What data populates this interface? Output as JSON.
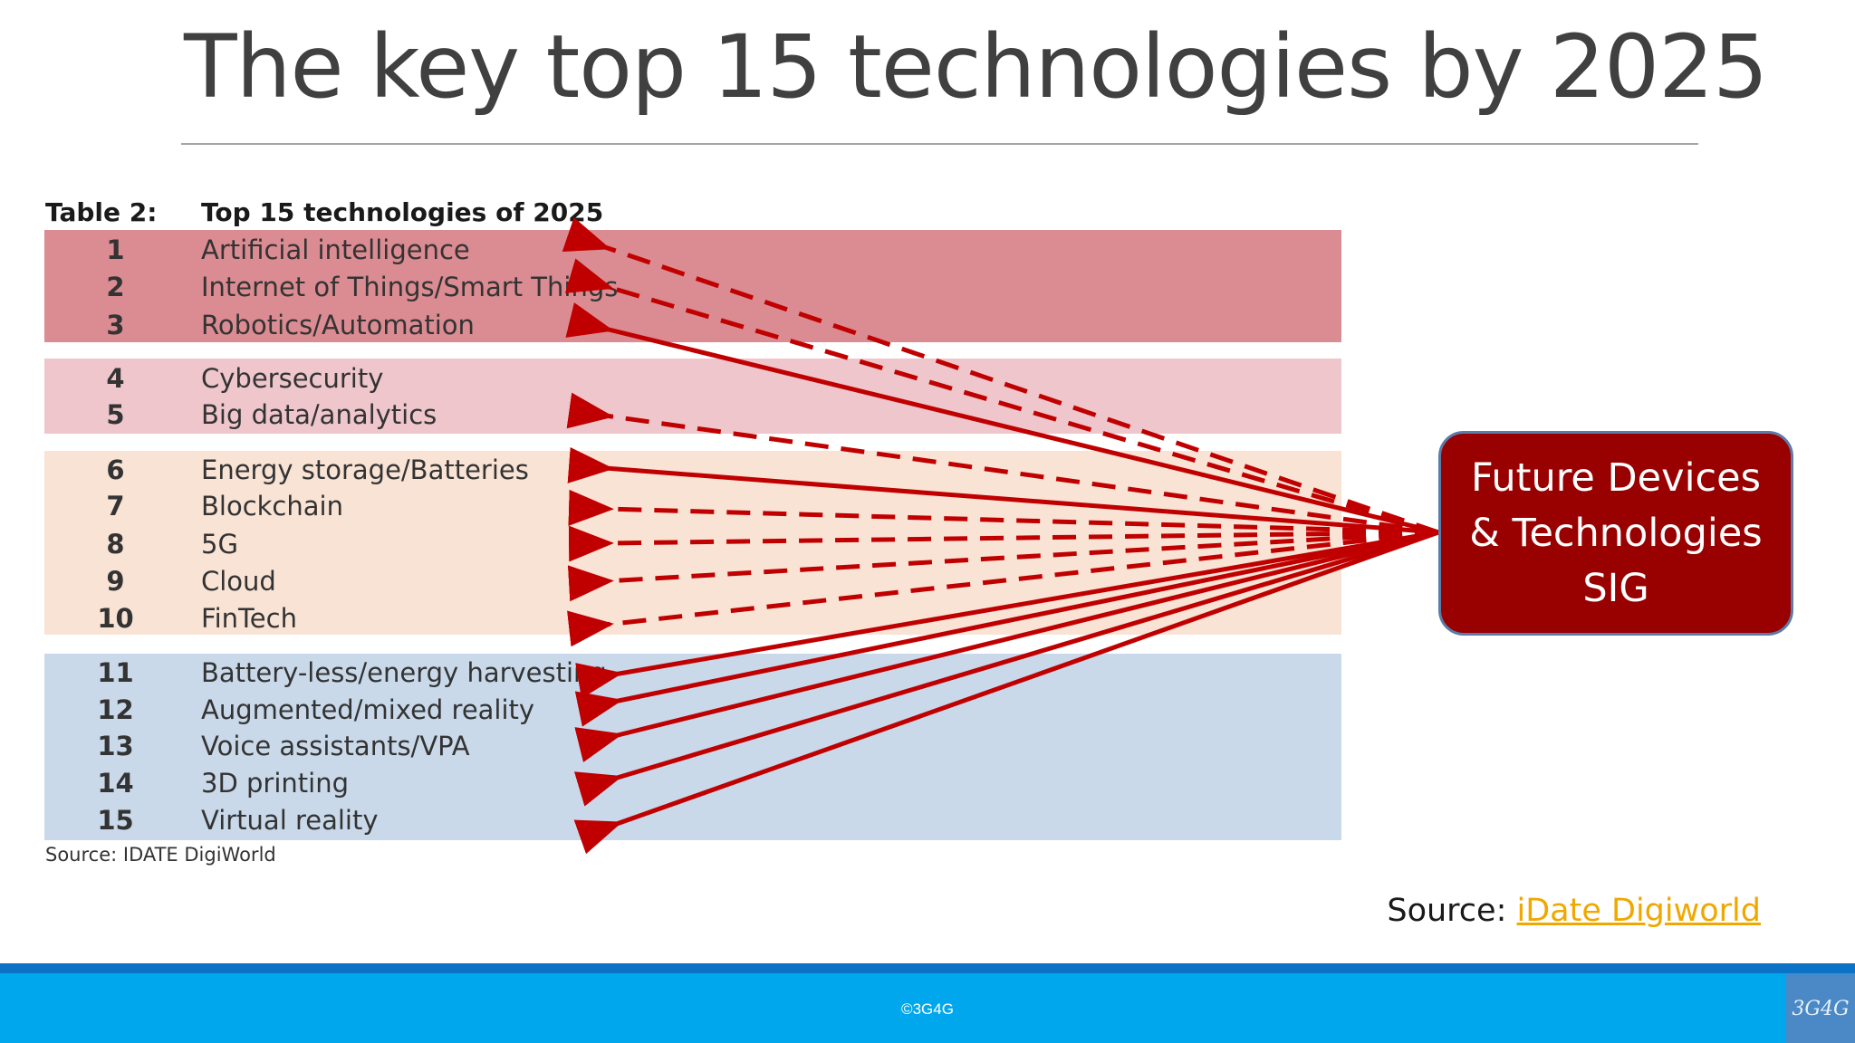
{
  "title": "The key top 15 technologies by 2025",
  "table": {
    "caption": "Table 2:",
    "heading": "Top 15 technologies of 2025",
    "rows": [
      {
        "rank": "1",
        "name": "Artificial intelligence"
      },
      {
        "rank": "2",
        "name": "Internet of Things/Smart Things"
      },
      {
        "rank": "3",
        "name": "Robotics/Automation"
      },
      {
        "rank": "4",
        "name": "Cybersecurity"
      },
      {
        "rank": "5",
        "name": "Big data/analytics"
      },
      {
        "rank": "6",
        "name": "Energy storage/Batteries"
      },
      {
        "rank": "7",
        "name": "Blockchain"
      },
      {
        "rank": "8",
        "name": "5G"
      },
      {
        "rank": "9",
        "name": "Cloud"
      },
      {
        "rank": "10",
        "name": "FinTech"
      },
      {
        "rank": "11",
        "name": "Battery-less/energy harvesting"
      },
      {
        "rank": "12",
        "name": "Augmented/mixed reality"
      },
      {
        "rank": "13",
        "name": "Voice assistants/VPA"
      },
      {
        "rank": "14",
        "name": "3D printing"
      },
      {
        "rank": "15",
        "name": "Virtual reality"
      }
    ],
    "source": "Source: IDATE DigiWorld",
    "band_colors": [
      "#db8b92",
      "#eec6cc",
      "#f8e3d5",
      "#c9d9ea"
    ]
  },
  "sig_box": {
    "lines": [
      "Future Devices",
      "& Technologies",
      "SIG"
    ],
    "color": "#990000"
  },
  "arrows": {
    "color": "#c00000",
    "styles": [
      "dashed",
      "dashed",
      "solid",
      "none",
      "dashed",
      "solid",
      "dashed",
      "dashed",
      "dashed",
      "dashed",
      "solid",
      "solid",
      "solid",
      "solid",
      "solid"
    ]
  },
  "slide_source": {
    "label": "Source: ",
    "link_text": "iDate Digiworld"
  },
  "footer": {
    "copyright": "©3G4G",
    "logo_text": "3G4G"
  },
  "colors": {
    "footer_bar": "#00a7ec",
    "footer_strip": "#0c72c5",
    "link": "#f0a800"
  }
}
